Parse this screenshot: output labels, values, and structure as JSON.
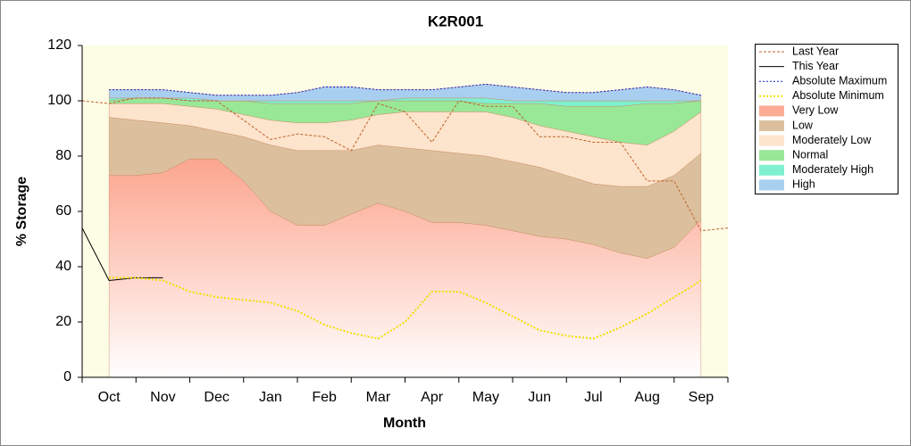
{
  "chart_data": {
    "type": "area",
    "title": "K2R001",
    "x_label": "Month",
    "y_label": "% Storage",
    "categories": [
      null,
      "Oct",
      null,
      "Nov",
      null,
      "Dec",
      null,
      "Jan",
      null,
      "Feb",
      null,
      "Mar",
      null,
      "Apr",
      null,
      "May",
      null,
      "Jun",
      null,
      "Jul",
      null,
      "Aug",
      null,
      "Sep",
      null
    ],
    "ylim": [
      0,
      120
    ],
    "yticks": [
      0,
      20,
      40,
      60,
      80,
      100,
      120
    ],
    "series": [
      {
        "name": "Last Year",
        "color": "#c0602a",
        "style": "dashed",
        "values": [
          100,
          99,
          101,
          101,
          100,
          100,
          93,
          86,
          88,
          87,
          82,
          99,
          96,
          85,
          100,
          98,
          98,
          87,
          87,
          85,
          85,
          71,
          71,
          53,
          54
        ]
      },
      {
        "name": "This Year",
        "color": "#000000",
        "style": "solid",
        "values": [
          54,
          35,
          36,
          36,
          null,
          null,
          null,
          null,
          null,
          null,
          null,
          null,
          null,
          null,
          null,
          null,
          null,
          null,
          null,
          null,
          null,
          null,
          null,
          null,
          null
        ]
      },
      {
        "name": "Absolute Maximum",
        "color": "#1a1acc",
        "style": "dotted",
        "values": [
          null,
          104,
          104,
          104,
          103,
          102,
          102,
          102,
          103,
          105,
          105,
          104,
          104,
          104,
          105,
          106,
          105,
          104,
          103,
          103,
          104,
          105,
          104,
          102,
          null
        ]
      },
      {
        "name": "Absolute Minimum",
        "color": "#f0e000",
        "style": "dotted",
        "values": [
          null,
          36,
          36,
          35,
          31,
          29,
          28,
          27,
          24,
          19,
          16,
          14,
          20,
          31,
          31,
          27,
          22,
          17,
          15,
          14,
          18,
          23,
          29,
          35,
          null
        ]
      },
      {
        "name": "Very Low",
        "color": "#fcab95",
        "style": "area",
        "values": [
          null,
          73,
          73,
          74,
          79,
          79,
          71,
          60,
          55,
          55,
          59,
          63,
          60,
          56,
          56,
          55,
          53,
          51,
          50,
          48,
          45,
          43,
          47,
          57,
          null
        ]
      },
      {
        "name": "Low",
        "color": "#dcc09e",
        "style": "area",
        "values": [
          null,
          21,
          20,
          18,
          12,
          10,
          16,
          24,
          27,
          27,
          23,
          21,
          23,
          26,
          25,
          25,
          25,
          25,
          23,
          22,
          24,
          26,
          26,
          24,
          null
        ]
      },
      {
        "name": "Moderately Low",
        "color": "#fde4cc",
        "style": "area",
        "values": [
          null,
          5,
          6,
          7,
          7,
          8,
          8,
          9,
          10,
          10,
          11,
          11,
          13,
          14,
          15,
          16,
          16,
          15,
          16,
          17,
          16,
          15,
          16,
          15,
          null
        ]
      },
      {
        "name": "Normal",
        "color": "#98e898",
        "style": "area",
        "values": [
          null,
          1,
          2,
          2,
          2,
          3,
          5,
          6,
          7,
          7,
          6,
          5,
          4,
          4,
          4,
          3,
          5,
          8,
          9,
          11,
          13,
          15,
          10,
          4,
          null
        ]
      },
      {
        "name": "Moderately High",
        "color": "#7ff0d0",
        "style": "area",
        "values": [
          null,
          1,
          0,
          0,
          1,
          0,
          0,
          1,
          1,
          1,
          1,
          0,
          1,
          1,
          1,
          2,
          1,
          1,
          2,
          2,
          2,
          1,
          1,
          0,
          null
        ]
      },
      {
        "name": "High",
        "color": "#a9cff0",
        "style": "area",
        "values": [
          null,
          3,
          3,
          3,
          2,
          2,
          2,
          2,
          3,
          5,
          5,
          4,
          3,
          3,
          4,
          5,
          5,
          4,
          3,
          3,
          4,
          5,
          4,
          2,
          null
        ]
      }
    ]
  }
}
